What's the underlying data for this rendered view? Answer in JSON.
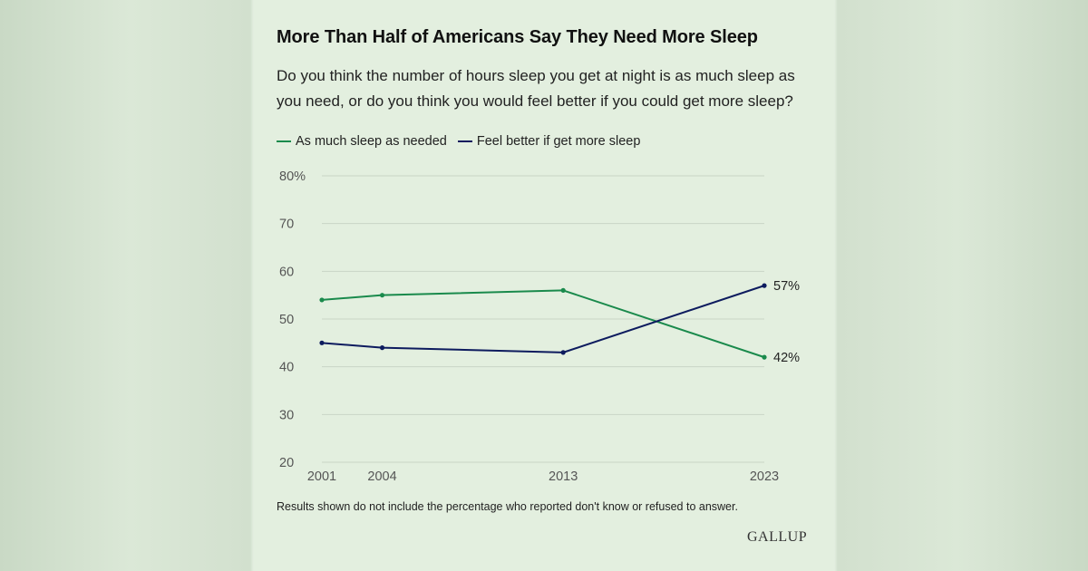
{
  "title": "More Than Half of Americans Say They Need More Sleep",
  "subtitle": "Do you think the number of hours sleep you get at night is as much sleep as you need, or do you think you would feel better if you could get more sleep?",
  "footnote": "Results shown do not include the percentage who reported don't know or refused to answer.",
  "logo": "GALLUP",
  "colors": {
    "series1": "#1a8a4c",
    "series2": "#0d1b5e",
    "grid": "#c9d4c6",
    "tick": "#555555",
    "label": "#222222"
  },
  "chart_data": {
    "type": "line",
    "title": "More Than Half of Americans Say They Need More Sleep",
    "x": [
      2001,
      2004,
      2013,
      2023
    ],
    "x_tick_labels": [
      "2001",
      "2004",
      "2013",
      "2023"
    ],
    "y_ticks": [
      20,
      30,
      40,
      50,
      60,
      70,
      80
    ],
    "y_tick_labels": [
      "20",
      "30",
      "40",
      "50",
      "60",
      "70",
      "80%"
    ],
    "ylim": [
      20,
      80
    ],
    "xlim": [
      2001,
      2023
    ],
    "grid": true,
    "legend_position": "top-left",
    "series": [
      {
        "name": "As much sleep as needed",
        "values": [
          54,
          55,
          56,
          42
        ],
        "color": "#1a8a4c",
        "end_label": "42%"
      },
      {
        "name": "Feel better if get more sleep",
        "values": [
          45,
          44,
          43,
          57
        ],
        "color": "#0d1b5e",
        "end_label": "57%"
      }
    ]
  }
}
